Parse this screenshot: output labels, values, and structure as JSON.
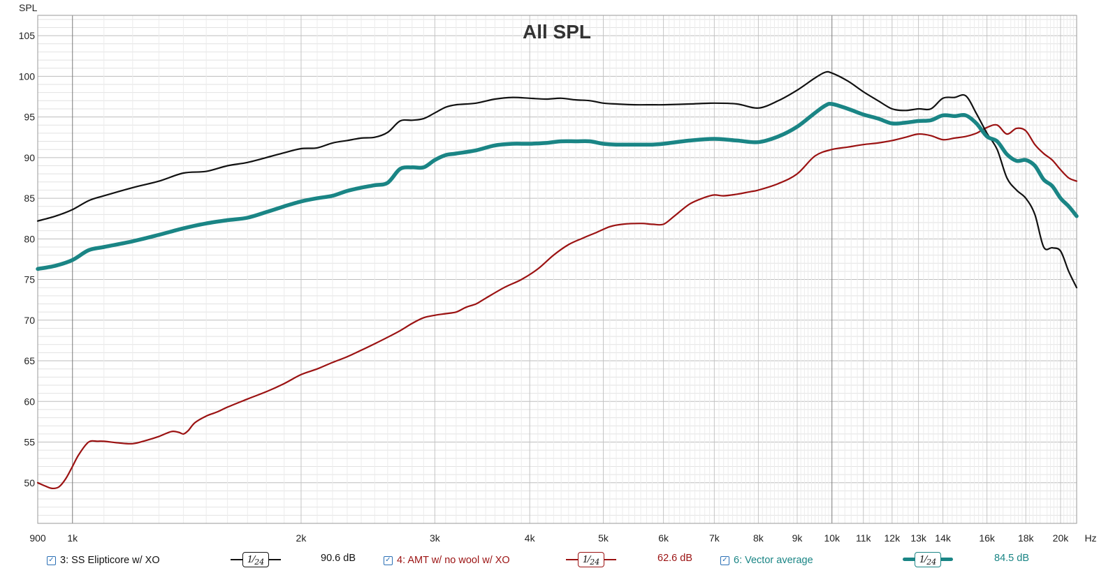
{
  "chart_data": {
    "type": "line",
    "title": "All SPL",
    "ylabel": "SPL",
    "x_unit_label": "Hz",
    "xscale": "log",
    "xlim": [
      900,
      21000
    ],
    "ylim": [
      45,
      107.5
    ],
    "ytick_labels": [
      "50",
      "55",
      "60",
      "65",
      "70",
      "75",
      "80",
      "85",
      "90",
      "95",
      "100",
      "105"
    ],
    "xtick_labels": [
      {
        "f": 900,
        "label": "900"
      },
      {
        "f": 1000,
        "label": "1k"
      },
      {
        "f": 2000,
        "label": "2k"
      },
      {
        "f": 3000,
        "label": "3k"
      },
      {
        "f": 4000,
        "label": "4k"
      },
      {
        "f": 5000,
        "label": "5k"
      },
      {
        "f": 6000,
        "label": "6k"
      },
      {
        "f": 7000,
        "label": "7k"
      },
      {
        "f": 8000,
        "label": "8k"
      },
      {
        "f": 9000,
        "label": "9k"
      },
      {
        "f": 10000,
        "label": "10k"
      },
      {
        "f": 11000,
        "label": "11k"
      },
      {
        "f": 12000,
        "label": "12k"
      },
      {
        "f": 13000,
        "label": "13k"
      },
      {
        "f": 14000,
        "label": "14k"
      },
      {
        "f": 16000,
        "label": "16k"
      },
      {
        "f": 18000,
        "label": "18k"
      },
      {
        "f": 20000,
        "label": "20k"
      }
    ],
    "grid": true,
    "series": [
      {
        "name": "3: SS Elipticore w/ XO",
        "color": "#111111",
        "x": [
          900,
          950,
          1000,
          1050,
          1100,
          1200,
          1300,
          1400,
          1500,
          1600,
          1700,
          1800,
          1900,
          2000,
          2100,
          2200,
          2300,
          2400,
          2500,
          2600,
          2700,
          2800,
          2900,
          3000,
          3100,
          3200,
          3400,
          3600,
          3800,
          4000,
          4200,
          4400,
          4600,
          4800,
          5000,
          5200,
          5500,
          5800,
          6000,
          6500,
          7000,
          7500,
          8000,
          8500,
          9000,
          9500,
          9800,
          10000,
          10500,
          11000,
          11500,
          12000,
          12500,
          13000,
          13500,
          14000,
          14500,
          15000,
          15500,
          16000,
          16500,
          17000,
          17500,
          18000,
          18500,
          19000,
          19500,
          20000,
          20500,
          21000
        ],
        "y": [
          82.2,
          82.8,
          83.6,
          84.7,
          85.3,
          86.3,
          87.1,
          88.1,
          88.3,
          89.0,
          89.4,
          90.0,
          90.6,
          91.1,
          91.2,
          91.8,
          92.1,
          92.4,
          92.5,
          93.1,
          94.5,
          94.6,
          94.8,
          95.5,
          96.2,
          96.5,
          96.7,
          97.2,
          97.4,
          97.3,
          97.2,
          97.3,
          97.1,
          97.0,
          96.7,
          96.6,
          96.5,
          96.5,
          96.5,
          96.6,
          96.7,
          96.6,
          96.1,
          97.0,
          98.3,
          99.8,
          100.5,
          100.4,
          99.4,
          98.1,
          97.0,
          96.0,
          95.8,
          96.0,
          96.0,
          97.3,
          97.4,
          97.6,
          95.4,
          93.0,
          91.0,
          87.5,
          86.0,
          85.0,
          83.0,
          79.0,
          78.9,
          78.5,
          76.0,
          74.0
        ]
      },
      {
        "name": "4: AMT w/ no wool w/ XO",
        "color": "#9b1212",
        "x": [
          900,
          920,
          940,
          960,
          980,
          1000,
          1020,
          1050,
          1080,
          1100,
          1150,
          1200,
          1250,
          1300,
          1350,
          1380,
          1400,
          1420,
          1450,
          1500,
          1550,
          1600,
          1700,
          1800,
          1900,
          2000,
          2100,
          2200,
          2300,
          2400,
          2500,
          2600,
          2700,
          2800,
          2900,
          3000,
          3100,
          3200,
          3300,
          3400,
          3500,
          3700,
          3900,
          4100,
          4300,
          4500,
          4700,
          4900,
          5100,
          5300,
          5600,
          5800,
          6000,
          6200,
          6500,
          6800,
          7000,
          7200,
          7500,
          7800,
          8000,
          8500,
          9000,
          9500,
          10000,
          10500,
          11000,
          11500,
          12000,
          12500,
          13000,
          13500,
          14000,
          14500,
          15000,
          15500,
          16000,
          16500,
          17000,
          17500,
          18000,
          18500,
          19000,
          19500,
          20000,
          20500,
          21000
        ],
        "y": [
          50.0,
          49.6,
          49.3,
          49.5,
          50.5,
          52.0,
          53.5,
          55.0,
          55.1,
          55.1,
          54.9,
          54.8,
          55.2,
          55.7,
          56.3,
          56.2,
          56.0,
          56.4,
          57.4,
          58.2,
          58.7,
          59.3,
          60.3,
          61.2,
          62.2,
          63.3,
          64.0,
          64.8,
          65.5,
          66.3,
          67.1,
          67.9,
          68.7,
          69.6,
          70.3,
          70.6,
          70.8,
          71.0,
          71.6,
          72.0,
          72.7,
          74.0,
          75.0,
          76.3,
          78.0,
          79.3,
          80.1,
          80.8,
          81.5,
          81.8,
          81.9,
          81.8,
          81.8,
          82.8,
          84.3,
          85.1,
          85.4,
          85.3,
          85.5,
          85.8,
          86.0,
          86.8,
          88.0,
          90.2,
          91.0,
          91.3,
          91.6,
          91.8,
          92.1,
          92.5,
          92.9,
          92.7,
          92.2,
          92.4,
          92.6,
          93.0,
          93.7,
          94.0,
          92.9,
          93.6,
          93.3,
          91.6,
          90.5,
          89.7,
          88.5,
          87.5,
          87.1
        ]
      },
      {
        "name": "6: Vector average",
        "color": "#1a8585",
        "x": [
          900,
          950,
          1000,
          1050,
          1100,
          1200,
          1300,
          1400,
          1500,
          1600,
          1700,
          1800,
          1900,
          2000,
          2100,
          2200,
          2300,
          2400,
          2500,
          2600,
          2700,
          2800,
          2900,
          3000,
          3100,
          3200,
          3400,
          3600,
          3800,
          4000,
          4200,
          4400,
          4600,
          4800,
          5000,
          5200,
          5500,
          5800,
          6000,
          6500,
          7000,
          7500,
          8000,
          8500,
          9000,
          9500,
          9800,
          10000,
          10500,
          11000,
          11500,
          12000,
          12500,
          13000,
          13500,
          14000,
          14500,
          15000,
          15500,
          16000,
          16500,
          17000,
          17500,
          18000,
          18500,
          19000,
          19500,
          20000,
          20500,
          21000
        ],
        "y": [
          76.3,
          76.7,
          77.4,
          78.6,
          79.0,
          79.7,
          80.5,
          81.3,
          81.9,
          82.3,
          82.6,
          83.3,
          84.0,
          84.6,
          85.0,
          85.3,
          85.9,
          86.3,
          86.6,
          86.9,
          88.6,
          88.8,
          88.8,
          89.7,
          90.3,
          90.5,
          90.9,
          91.5,
          91.7,
          91.7,
          91.8,
          92.0,
          92.0,
          92.0,
          91.7,
          91.6,
          91.6,
          91.6,
          91.7,
          92.1,
          92.3,
          92.1,
          91.9,
          92.6,
          93.8,
          95.5,
          96.4,
          96.6,
          96.0,
          95.3,
          94.8,
          94.2,
          94.3,
          94.5,
          94.6,
          95.2,
          95.1,
          95.2,
          94.2,
          92.6,
          92.0,
          90.4,
          89.6,
          89.7,
          89.0,
          87.3,
          86.5,
          85.0,
          84.0,
          82.8
        ]
      }
    ]
  },
  "legend": [
    {
      "label": "3: SS Elipticore w/ XO",
      "smoothing": "24",
      "level": "90.6 dB",
      "color": "#111111"
    },
    {
      "label": "4: AMT w/ no wool w/ XO",
      "smoothing": "24",
      "level": "62.6 dB",
      "color": "#9b1212"
    },
    {
      "label": "6: Vector average",
      "smoothing": "24",
      "level": "84.5 dB",
      "color": "#1a8585"
    }
  ],
  "checkbox_glyph": "✓",
  "smoothing_numerator": "1"
}
